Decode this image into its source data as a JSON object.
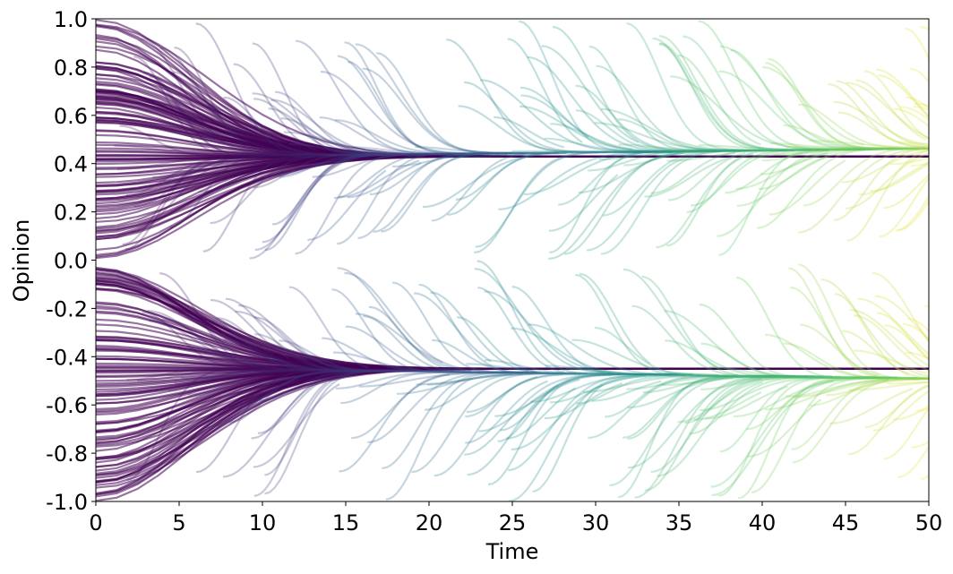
{
  "chart_data": {
    "type": "line",
    "title": "",
    "xlabel": "Time",
    "ylabel": "Opinion",
    "xlim": [
      0,
      50
    ],
    "ylim": [
      -1.0,
      1.0
    ],
    "xticks": [
      0,
      5,
      10,
      15,
      20,
      25,
      30,
      35,
      40,
      45,
      50
    ],
    "xtick_labels": [
      "0",
      "5",
      "10",
      "15",
      "20",
      "25",
      "30",
      "35",
      "40",
      "45",
      "50"
    ],
    "yticks": [
      1.0,
      0.8,
      0.6,
      0.4,
      0.2,
      0.0,
      -0.2,
      -0.4,
      -0.6,
      -0.8,
      -1.0
    ],
    "ytick_labels": [
      "1.0",
      "0.8",
      "0.6",
      "0.4",
      "0.2",
      "0.0",
      "-0.2",
      "-0.4",
      "-0.6",
      "-0.8",
      "-1.0"
    ],
    "grid": false,
    "legend": "none",
    "colormap": "viridis",
    "colormap_by": "time",
    "colormap_stops": [
      "#440154",
      "#3b528b",
      "#21908d",
      "#5dc963",
      "#fde725"
    ],
    "series": [
      {
        "description": "upper opinion cluster",
        "cluster_start": 0.43,
        "cluster_end": 0.47,
        "initial_opinion_range": [
          0.0,
          1.0
        ]
      },
      {
        "description": "lower opinion cluster",
        "cluster_start": -0.45,
        "cluster_end": -0.5,
        "initial_opinion_range": [
          -1.0,
          0.0
        ]
      }
    ]
  }
}
